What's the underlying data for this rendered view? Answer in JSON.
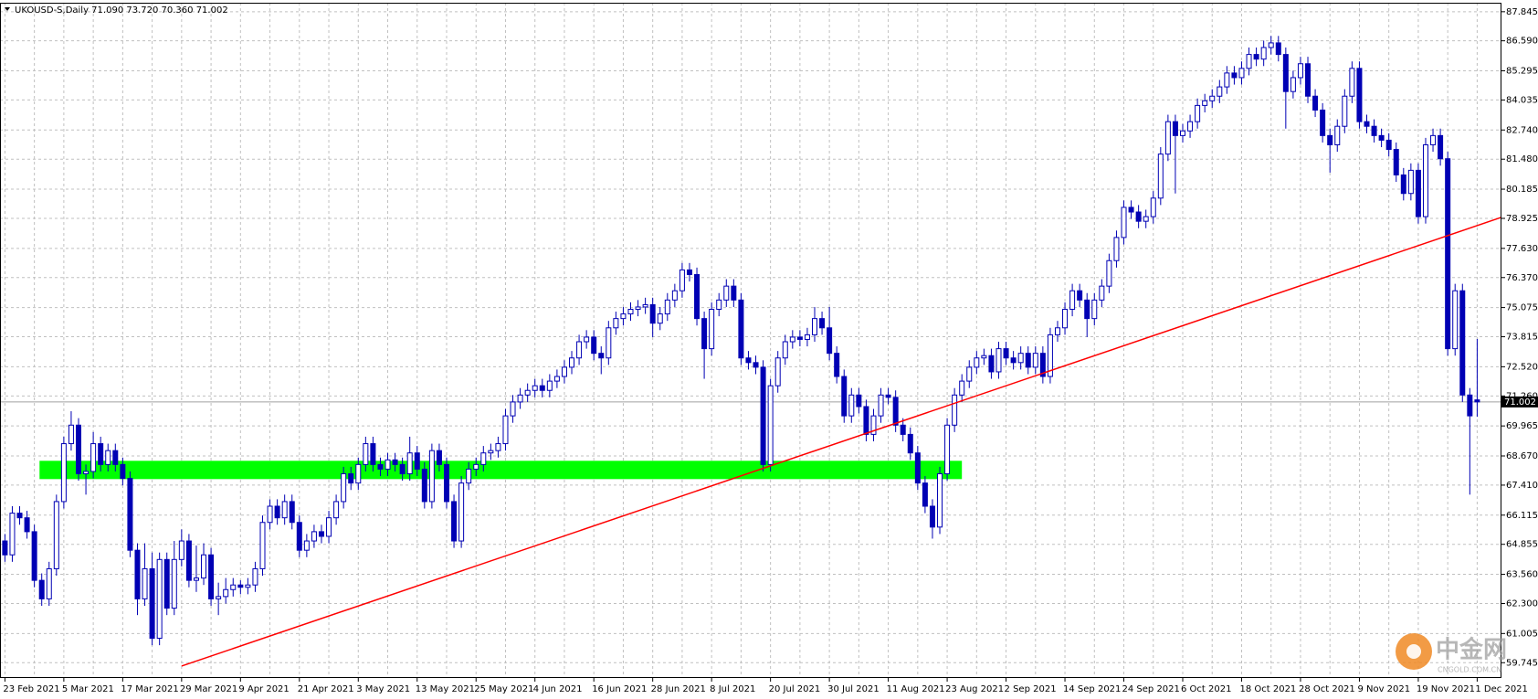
{
  "chart_data": {
    "type": "candlestick",
    "title": "UKOUSD-S,Daily  71.090 73.720 70.360 71.002",
    "categories": [
      "23 Feb 2021",
      null,
      null,
      null,
      null,
      null,
      null,
      null,
      "5 Mar 2021",
      null,
      null,
      null,
      null,
      null,
      null,
      null,
      "17 Mar 2021",
      null,
      null,
      null,
      null,
      null,
      null,
      null,
      "29 Mar 2021",
      null,
      null,
      null,
      null,
      null,
      null,
      null,
      "9 Apr 2021",
      null,
      null,
      null,
      null,
      null,
      null,
      null,
      "21 Apr 2021",
      null,
      null,
      null,
      null,
      null,
      null,
      null,
      "3 May 2021",
      null,
      null,
      null,
      null,
      null,
      null,
      null,
      "13 May 2021",
      null,
      null,
      null,
      null,
      null,
      null,
      null,
      "25 May 2021",
      null,
      null,
      null,
      null,
      null,
      null,
      null,
      "4 Jun 2021",
      null,
      null,
      null,
      null,
      null,
      null,
      null,
      "16 Jun 2021",
      null,
      null,
      null,
      null,
      null,
      null,
      null,
      "28 Jun 2021",
      null,
      null,
      null,
      null,
      null,
      null,
      null,
      "8 Jul 2021",
      null,
      null,
      null,
      null,
      null,
      null,
      null,
      "20 Jul 2021",
      null,
      null,
      null,
      null,
      null,
      null,
      null,
      "30 Jul 2021",
      null,
      null,
      null,
      null,
      null,
      null,
      null,
      "11 Aug 2021",
      null,
      null,
      null,
      null,
      null,
      null,
      null,
      "23 Aug 2021",
      null,
      null,
      null,
      null,
      null,
      null,
      null,
      "2 Sep 2021",
      null,
      null,
      null,
      null,
      null,
      null,
      null,
      "14 Sep 2021",
      null,
      null,
      null,
      null,
      null,
      null,
      null,
      "24 Sep 2021",
      null,
      null,
      null,
      null,
      null,
      null,
      null,
      "6 Oct 2021",
      null,
      null,
      null,
      null,
      null,
      null,
      null,
      "18 Oct 2021",
      null,
      null,
      null,
      null,
      null,
      null,
      null,
      "28 Oct 2021",
      null,
      null,
      null,
      null,
      null,
      null,
      null,
      "9 Nov 2021",
      null,
      null,
      null,
      null,
      null,
      null,
      null,
      "19 Nov 2021",
      null,
      null,
      null,
      null,
      null,
      null,
      null,
      "1 Dec 2021"
    ],
    "open": [
      65.0,
      64.4,
      66.2,
      66.0,
      65.4,
      63.3,
      62.5,
      63.8,
      66.7,
      69.2,
      70.0,
      67.9,
      68.0,
      69.2,
      68.3,
      68.9,
      68.3,
      67.7,
      64.6,
      62.5,
      63.8,
      60.8,
      64.2,
      62.1,
      64.2,
      65.0,
      63.3,
      63.4,
      64.4,
      62.5,
      62.6,
      62.9,
      63.1,
      63.0,
      63.1,
      63.8,
      65.8,
      66.5,
      66.0,
      66.7,
      65.8,
      64.6,
      65.0,
      65.4,
      65.2,
      66.0,
      66.7,
      67.9,
      67.5,
      68.3,
      69.2,
      68.3,
      68.1,
      68.5,
      68.3,
      67.9,
      68.8,
      68.1,
      66.7,
      68.9,
      68.3,
      66.7,
      65.0,
      67.5,
      68.1,
      68.3,
      68.8,
      68.9,
      69.2,
      70.4,
      71.0,
      71.3,
      71.5,
      71.7,
      71.5,
      71.9,
      72.1,
      72.5,
      72.9,
      73.6,
      73.8,
      73.1,
      72.9,
      74.2,
      74.6,
      74.8,
      75.0,
      75.1,
      75.2,
      74.4,
      74.8,
      75.4,
      75.8,
      76.7,
      76.5,
      74.6,
      73.3,
      75.0,
      75.4,
      76.0,
      75.4,
      72.9,
      72.7,
      72.5,
      68.3,
      71.7,
      72.9,
      73.6,
      73.8,
      73.7,
      73.9,
      74.6,
      74.2,
      73.1,
      72.1,
      70.4,
      71.3,
      70.8,
      69.6,
      70.4,
      71.3,
      71.2,
      70.0,
      69.6,
      68.8,
      67.5,
      66.5,
      65.6,
      67.9,
      70.0,
      71.3,
      71.9,
      72.5,
      72.9,
      73.0,
      72.3,
      73.3,
      72.9,
      72.7,
      73.1,
      72.5,
      73.1,
      72.1,
      73.9,
      74.2,
      75.0,
      75.8,
      75.4,
      74.6,
      75.4,
      76.0,
      77.1,
      78.1,
      79.4,
      79.2,
      78.8,
      79.0,
      79.8,
      81.7,
      83.1,
      82.5,
      82.7,
      83.1,
      83.8,
      84.0,
      84.2,
      84.6,
      85.2,
      85.0,
      85.4,
      86.0,
      85.8,
      86.3,
      86.5,
      86.0,
      84.4,
      85.0,
      85.6,
      84.2,
      83.6,
      82.5,
      82.1,
      82.9,
      84.2,
      85.4,
      83.1,
      82.9,
      82.5,
      82.3,
      81.9,
      80.8,
      80.0,
      81.0,
      79.0,
      82.1,
      82.5,
      81.5,
      73.3,
      75.8,
      71.3,
      71.09
    ],
    "high": [
      65.3,
      66.5,
      66.5,
      66.3,
      65.7,
      63.6,
      64.1,
      67.0,
      69.5,
      70.6,
      70.3,
      68.3,
      69.7,
      69.5,
      69.2,
      69.2,
      68.6,
      68.0,
      64.9,
      64.9,
      64.5,
      64.5,
      64.5,
      65.0,
      65.5,
      65.3,
      64.8,
      64.9,
      64.7,
      63.2,
      63.4,
      63.4,
      63.3,
      63.4,
      64.1,
      66.1,
      66.8,
      66.8,
      67.0,
      67.0,
      66.1,
      65.3,
      65.7,
      65.7,
      66.3,
      67.0,
      68.2,
      68.2,
      68.6,
      69.5,
      69.5,
      68.6,
      68.8,
      68.8,
      68.6,
      69.5,
      69.1,
      68.4,
      69.2,
      69.2,
      68.6,
      67.0,
      67.8,
      68.4,
      68.6,
      69.1,
      69.2,
      69.5,
      70.7,
      71.3,
      71.6,
      71.8,
      72.0,
      72.0,
      72.2,
      72.4,
      72.8,
      73.2,
      73.9,
      74.1,
      74.1,
      73.4,
      74.5,
      74.9,
      75.1,
      75.3,
      75.4,
      75.5,
      75.5,
      75.1,
      75.7,
      76.1,
      77.0,
      77.0,
      76.8,
      74.9,
      75.3,
      75.7,
      76.3,
      76.3,
      75.7,
      73.2,
      73.0,
      72.8,
      72.0,
      73.2,
      73.9,
      74.1,
      74.1,
      74.2,
      75.1,
      74.9,
      75.1,
      73.4,
      72.4,
      71.6,
      71.6,
      71.1,
      70.7,
      71.6,
      71.6,
      71.5,
      70.3,
      69.9,
      69.1,
      67.8,
      66.8,
      68.2,
      70.3,
      71.6,
      72.2,
      72.8,
      73.2,
      73.3,
      73.3,
      73.6,
      73.6,
      73.2,
      73.4,
      73.4,
      73.4,
      73.4,
      74.2,
      74.5,
      75.3,
      76.1,
      76.1,
      75.7,
      75.7,
      76.3,
      77.4,
      78.4,
      79.7,
      79.7,
      79.5,
      79.3,
      80.1,
      82.0,
      83.4,
      83.4,
      83.0,
      83.4,
      84.1,
      84.3,
      84.5,
      84.9,
      85.5,
      85.5,
      85.7,
      86.3,
      86.3,
      86.6,
      86.8,
      86.8,
      86.3,
      85.3,
      85.9,
      85.9,
      84.5,
      83.9,
      82.8,
      83.2,
      84.5,
      85.7,
      85.7,
      83.4,
      83.2,
      82.8,
      82.6,
      82.2,
      81.1,
      81.3,
      81.3,
      82.4,
      82.8,
      82.8,
      81.8,
      76.1,
      76.1,
      71.6,
      73.72
    ],
    "low": [
      64.1,
      64.1,
      65.7,
      65.1,
      63.0,
      62.2,
      62.2,
      63.5,
      66.4,
      68.9,
      67.6,
      67.0,
      67.7,
      68.0,
      68.0,
      68.0,
      67.4,
      64.3,
      61.8,
      62.2,
      60.5,
      60.5,
      61.8,
      61.8,
      63.9,
      63.0,
      62.8,
      63.1,
      62.2,
      61.8,
      62.3,
      62.6,
      62.7,
      62.7,
      62.8,
      63.5,
      65.5,
      65.7,
      65.7,
      65.5,
      64.3,
      64.3,
      64.7,
      64.9,
      64.9,
      65.7,
      66.4,
      67.2,
      67.2,
      68.0,
      68.0,
      67.8,
      67.8,
      68.0,
      67.6,
      67.6,
      67.8,
      66.4,
      66.4,
      68.0,
      66.4,
      64.7,
      64.7,
      67.2,
      67.8,
      68.0,
      68.5,
      68.6,
      68.9,
      70.1,
      70.7,
      71.0,
      71.2,
      71.2,
      71.2,
      71.6,
      71.8,
      72.2,
      72.6,
      73.3,
      72.8,
      72.2,
      72.6,
      73.9,
      74.3,
      74.5,
      74.7,
      74.8,
      73.8,
      74.1,
      74.5,
      75.1,
      75.5,
      76.2,
      74.3,
      72.0,
      73.0,
      74.7,
      75.1,
      75.1,
      72.6,
      72.4,
      72.2,
      68.0,
      68.0,
      71.4,
      72.6,
      73.3,
      73.4,
      73.4,
      73.6,
      73.9,
      72.8,
      71.8,
      70.1,
      70.1,
      70.5,
      69.3,
      69.3,
      70.1,
      70.9,
      69.7,
      69.3,
      68.5,
      67.2,
      66.2,
      65.1,
      65.3,
      67.6,
      69.7,
      71.0,
      71.6,
      72.2,
      72.6,
      72.0,
      72.0,
      72.6,
      72.4,
      72.4,
      72.2,
      72.2,
      71.8,
      71.8,
      73.6,
      73.9,
      74.7,
      75.1,
      73.8,
      74.3,
      75.1,
      75.7,
      76.8,
      77.8,
      78.9,
      78.5,
      78.5,
      78.7,
      79.5,
      81.4,
      80.0,
      82.2,
      82.4,
      82.8,
      83.5,
      83.7,
      83.9,
      84.3,
      84.7,
      84.7,
      85.1,
      85.5,
      85.5,
      86.0,
      85.7,
      82.8,
      84.1,
      84.7,
      83.9,
      83.3,
      82.2,
      80.9,
      81.8,
      82.6,
      83.9,
      82.8,
      82.6,
      82.2,
      82.0,
      81.6,
      80.5,
      79.7,
      79.7,
      78.7,
      78.7,
      81.8,
      81.2,
      73.0,
      73.0,
      71.0,
      67.0,
      70.36
    ],
    "close": [
      64.4,
      66.2,
      66.0,
      65.4,
      63.3,
      62.5,
      63.8,
      66.7,
      69.2,
      70.0,
      67.9,
      68.0,
      69.2,
      68.3,
      68.9,
      68.3,
      67.7,
      64.6,
      62.5,
      63.8,
      60.8,
      64.2,
      62.1,
      64.2,
      65.0,
      63.3,
      63.4,
      64.4,
      62.5,
      62.6,
      62.9,
      63.1,
      63.0,
      63.1,
      63.8,
      65.8,
      66.5,
      66.0,
      66.7,
      65.8,
      64.6,
      65.0,
      65.4,
      65.2,
      66.0,
      66.7,
      67.9,
      67.5,
      68.3,
      69.2,
      68.3,
      68.1,
      68.5,
      68.3,
      67.9,
      68.8,
      68.1,
      66.7,
      68.9,
      68.3,
      66.7,
      65.0,
      67.5,
      68.1,
      68.3,
      68.8,
      68.9,
      69.2,
      70.4,
      71.0,
      71.3,
      71.5,
      71.7,
      71.5,
      71.9,
      72.1,
      72.5,
      72.9,
      73.6,
      73.8,
      73.1,
      72.9,
      74.2,
      74.6,
      74.8,
      75.0,
      75.1,
      75.2,
      74.4,
      74.8,
      75.4,
      75.8,
      76.7,
      76.5,
      74.6,
      73.3,
      75.0,
      75.4,
      76.0,
      75.4,
      72.9,
      72.7,
      72.5,
      68.3,
      71.7,
      72.9,
      73.6,
      73.8,
      73.7,
      73.9,
      74.6,
      74.2,
      73.1,
      72.1,
      70.4,
      71.3,
      70.8,
      69.6,
      70.4,
      71.3,
      71.2,
      70.0,
      69.6,
      68.8,
      67.5,
      66.5,
      65.6,
      67.9,
      70.0,
      71.3,
      71.9,
      72.5,
      72.9,
      73.0,
      72.3,
      73.3,
      72.9,
      72.7,
      73.1,
      72.5,
      73.1,
      72.1,
      73.9,
      74.2,
      75.0,
      75.8,
      75.4,
      74.6,
      75.4,
      76.0,
      77.1,
      78.1,
      79.4,
      79.2,
      78.8,
      79.0,
      79.8,
      81.7,
      83.1,
      82.5,
      82.7,
      83.1,
      83.8,
      84.0,
      84.2,
      84.6,
      85.2,
      85.0,
      85.4,
      86.0,
      85.8,
      86.3,
      86.5,
      86.0,
      84.4,
      85.0,
      85.6,
      84.2,
      83.6,
      82.5,
      82.1,
      82.9,
      84.2,
      85.4,
      83.1,
      82.9,
      82.5,
      82.3,
      81.9,
      80.8,
      80.0,
      81.0,
      79.0,
      82.1,
      82.5,
      81.5,
      73.3,
      75.8,
      71.3,
      70.4,
      71.002
    ],
    "up_color": "#ffffff",
    "down_color": "#0000b4",
    "wick_color": "#0000b4",
    "ylim": [
      59.085,
      88.233
    ],
    "yticks": [
      87.845,
      {
        "value": 86.59,
        "label": "86.590"
      },
      85.295,
      84.035,
      {
        "value": 82.74,
        "label": "82.740"
      },
      {
        "value": 81.48,
        "label": "81.480"
      },
      80.185,
      78.925,
      {
        "value": 77.63,
        "label": "77.630"
      },
      {
        "value": 76.37,
        "label": "76.370"
      },
      75.075,
      73.815,
      {
        "value": 72.52,
        "label": "72.520"
      },
      {
        "value": 71.26,
        "label": "71.260"
      },
      69.965,
      {
        "value": 68.67,
        "label": "68.670"
      },
      {
        "value": 67.41,
        "label": "67.410"
      },
      66.115,
      64.855,
      {
        "value": 63.56,
        "label": "63.560"
      },
      {
        "value": 62.3,
        "label": "62.300"
      },
      61.005,
      59.745
    ],
    "grid": true,
    "current_price": {
      "value": 71.002,
      "label": "71.002"
    },
    "zone": {
      "low": 67.67,
      "high": 68.46,
      "from_bar": 4.7,
      "to_bar": 130,
      "color": "#00ff00"
    },
    "trendline": {
      "points": [
        [
          24,
          59.6
        ],
        [
          203.3,
          78.97
        ]
      ],
      "color": "#ff0000"
    },
    "watermark": {
      "text": "中金网",
      "subtext": "CNGOLD.COM.CN"
    }
  }
}
